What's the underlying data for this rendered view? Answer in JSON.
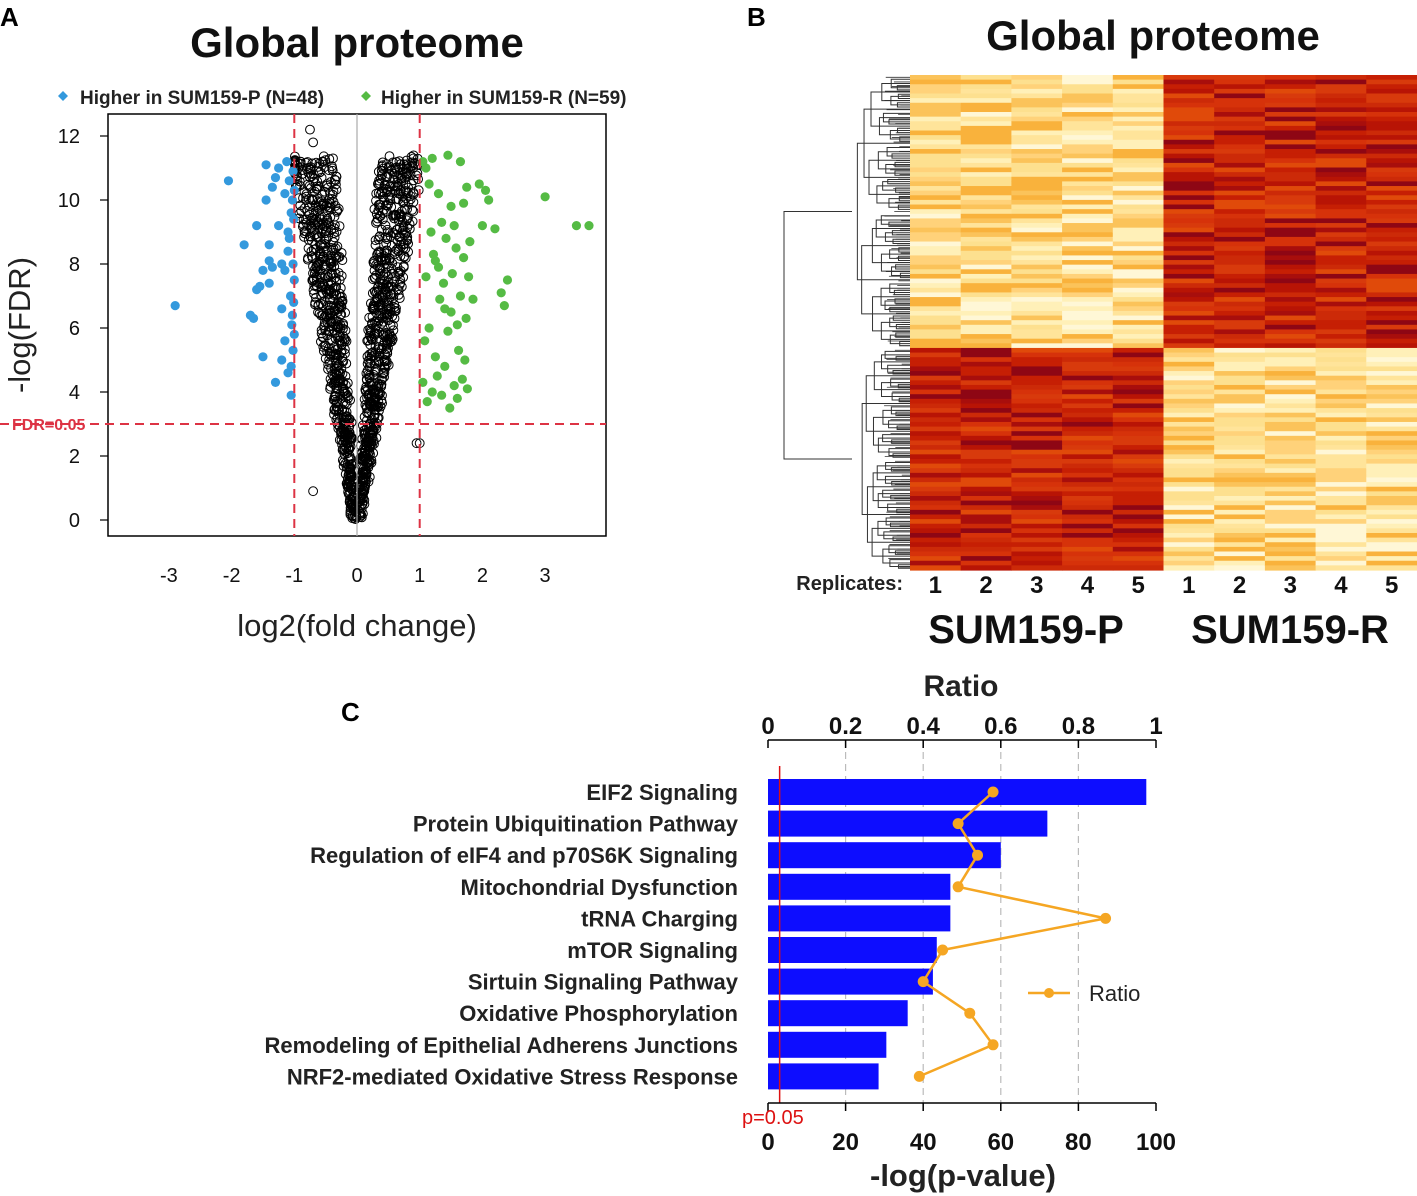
{
  "panels": {
    "a": "A",
    "b": "B",
    "c": "C"
  },
  "colors": {
    "higher_p": "#3399dd",
    "higher_r": "#55bb44",
    "threshold": "#dd3344",
    "bars": "#0d0dff",
    "ratio_line": "#f5a623",
    "heat_low": "#fff2c0",
    "heat_high": "#7a0010"
  },
  "chart_data": [
    {
      "type": "scatter",
      "title": "Global proteome",
      "xlabel": "log2(fold change)",
      "ylabel": "-log(FDR)",
      "xlim": [
        -3.9,
        3.9
      ],
      "ylim": [
        -0.5,
        12.5
      ],
      "xticks": [
        "-3",
        "-2",
        "-1",
        "0",
        "1",
        "2",
        "3"
      ],
      "yticks": [
        "0",
        "2",
        "4",
        "6",
        "8",
        "10",
        "12"
      ],
      "fdr_line": {
        "y": 3.0,
        "label": "FDR=0.05"
      },
      "fold_lines": [
        -1,
        1
      ],
      "legend": [
        {
          "label": "Higher in SUM159-P (N=48)",
          "color": "#3399dd"
        },
        {
          "label": "Higher in SUM159-R (N=59)",
          "color": "#55bb44"
        }
      ],
      "higher_in_p": [
        [
          -2.9,
          6.7
        ],
        [
          -2.05,
          10.6
        ],
        [
          -1.8,
          8.6
        ],
        [
          -1.7,
          6.4
        ],
        [
          -1.65,
          6.3
        ],
        [
          -1.6,
          7.2
        ],
        [
          -1.55,
          7.3
        ],
        [
          -1.5,
          5.1
        ],
        [
          -1.5,
          7.8
        ],
        [
          -1.45,
          10.0
        ],
        [
          -1.45,
          11.1
        ],
        [
          -1.4,
          8.1
        ],
        [
          -1.4,
          8.6
        ],
        [
          -1.35,
          10.4
        ],
        [
          -1.35,
          7.9
        ],
        [
          -1.3,
          4.3
        ],
        [
          -1.25,
          11.0
        ],
        [
          -1.25,
          9.2
        ],
        [
          -1.2,
          8.0
        ],
        [
          -1.2,
          6.6
        ],
        [
          -1.15,
          10.2
        ],
        [
          -1.15,
          5.6
        ],
        [
          -1.12,
          11.2
        ],
        [
          -1.1,
          9.0
        ],
        [
          -1.1,
          8.4
        ],
        [
          -1.1,
          4.6
        ],
        [
          -1.08,
          10.6
        ],
        [
          -1.06,
          7.0
        ],
        [
          -1.05,
          3.9
        ],
        [
          -1.05,
          9.6
        ],
        [
          -1.04,
          6.1
        ],
        [
          -1.03,
          10.0
        ],
        [
          -1.02,
          5.3
        ],
        [
          -1.02,
          8.0
        ],
        [
          -1.01,
          9.4
        ],
        [
          -1.01,
          6.8
        ],
        [
          -1.0,
          7.5
        ],
        [
          -1.0,
          10.3
        ],
        [
          -1.6,
          9.2
        ],
        [
          -1.3,
          10.7
        ],
        [
          -1.2,
          5.0
        ],
        [
          -1.4,
          7.4
        ],
        [
          -1.15,
          7.8
        ],
        [
          -1.08,
          8.8
        ],
        [
          -1.05,
          4.8
        ],
        [
          -1.03,
          6.4
        ],
        [
          -1.02,
          10.9
        ],
        [
          -1.0,
          5.8
        ]
      ],
      "higher_in_r": [
        [
          1.05,
          11.2
        ],
        [
          1.1,
          11.0
        ],
        [
          1.15,
          10.5
        ],
        [
          1.2,
          11.3
        ],
        [
          1.25,
          8.1
        ],
        [
          1.3,
          7.9
        ],
        [
          1.35,
          9.3
        ],
        [
          1.4,
          6.6
        ],
        [
          1.45,
          11.4
        ],
        [
          1.5,
          9.8
        ],
        [
          1.55,
          9.2
        ],
        [
          1.6,
          6.1
        ],
        [
          1.65,
          11.2
        ],
        [
          1.7,
          9.9
        ],
        [
          1.75,
          10.4
        ],
        [
          1.8,
          8.7
        ],
        [
          1.85,
          6.9
        ],
        [
          1.95,
          10.5
        ],
        [
          2.0,
          9.2
        ],
        [
          2.05,
          10.3
        ],
        [
          2.1,
          10.0
        ],
        [
          2.2,
          9.1
        ],
        [
          2.3,
          7.1
        ],
        [
          2.35,
          6.7
        ],
        [
          2.4,
          7.5
        ],
        [
          3.0,
          10.1
        ],
        [
          3.5,
          9.2
        ],
        [
          3.7,
          9.2
        ],
        [
          1.05,
          4.3
        ],
        [
          1.08,
          5.6
        ],
        [
          1.1,
          7.6
        ],
        [
          1.12,
          3.7
        ],
        [
          1.15,
          6.0
        ],
        [
          1.18,
          9.0
        ],
        [
          1.2,
          4.0
        ],
        [
          1.22,
          8.3
        ],
        [
          1.25,
          5.1
        ],
        [
          1.28,
          4.5
        ],
        [
          1.3,
          10.2
        ],
        [
          1.32,
          6.9
        ],
        [
          1.35,
          3.9
        ],
        [
          1.38,
          7.4
        ],
        [
          1.4,
          4.8
        ],
        [
          1.42,
          8.8
        ],
        [
          1.45,
          5.9
        ],
        [
          1.48,
          3.5
        ],
        [
          1.5,
          6.5
        ],
        [
          1.52,
          7.7
        ],
        [
          1.55,
          4.2
        ],
        [
          1.58,
          8.5
        ],
        [
          1.6,
          3.8
        ],
        [
          1.62,
          5.3
        ],
        [
          1.65,
          7.0
        ],
        [
          1.68,
          4.4
        ],
        [
          1.7,
          8.2
        ],
        [
          1.72,
          5.0
        ],
        [
          1.74,
          6.3
        ],
        [
          1.76,
          4.1
        ],
        [
          1.78,
          7.6
        ]
      ]
    },
    {
      "type": "heatmap",
      "title": "Global proteome",
      "replicates_label": "Replicates:",
      "columns": [
        "1",
        "2",
        "3",
        "4",
        "5",
        "1",
        "2",
        "3",
        "4",
        "5"
      ],
      "groups": [
        "SUM159-P",
        "SUM159-R"
      ],
      "n_rows_top": 59,
      "n_rows_bottom": 48
    },
    {
      "type": "bar",
      "xlabel": "-log(p-value)",
      "xlabel_top": "Ratio",
      "xlim": [
        0,
        100
      ],
      "xticks": [
        "0",
        "20",
        "40",
        "60",
        "80",
        "100"
      ],
      "ratio_ticks": [
        "0",
        "0.2",
        "0.4",
        "0.6",
        "0.8",
        "1"
      ],
      "categories": [
        "EIF2 Signaling",
        "Protein Ubiquitination Pathway",
        "Regulation of eIF4 and p70S6K Signaling",
        "Mitochondrial Dysfunction",
        "tRNA Charging",
        "mTOR Signaling",
        "Sirtuin Signaling Pathway",
        "Oxidative Phosphorylation",
        "Remodeling of Epithelial Adherens Junctions",
        "NRF2-mediated Oxidative Stress Response"
      ],
      "values": [
        97.5,
        72,
        60,
        47,
        47,
        43.5,
        42.5,
        36,
        30.5,
        28.5
      ],
      "ratio": [
        0.58,
        0.49,
        0.54,
        0.49,
        0.87,
        0.45,
        0.4,
        0.52,
        0.58,
        0.39
      ],
      "pvalue_line": {
        "value": 3,
        "label": "p=0.05"
      },
      "legend": "Ratio"
    }
  ]
}
